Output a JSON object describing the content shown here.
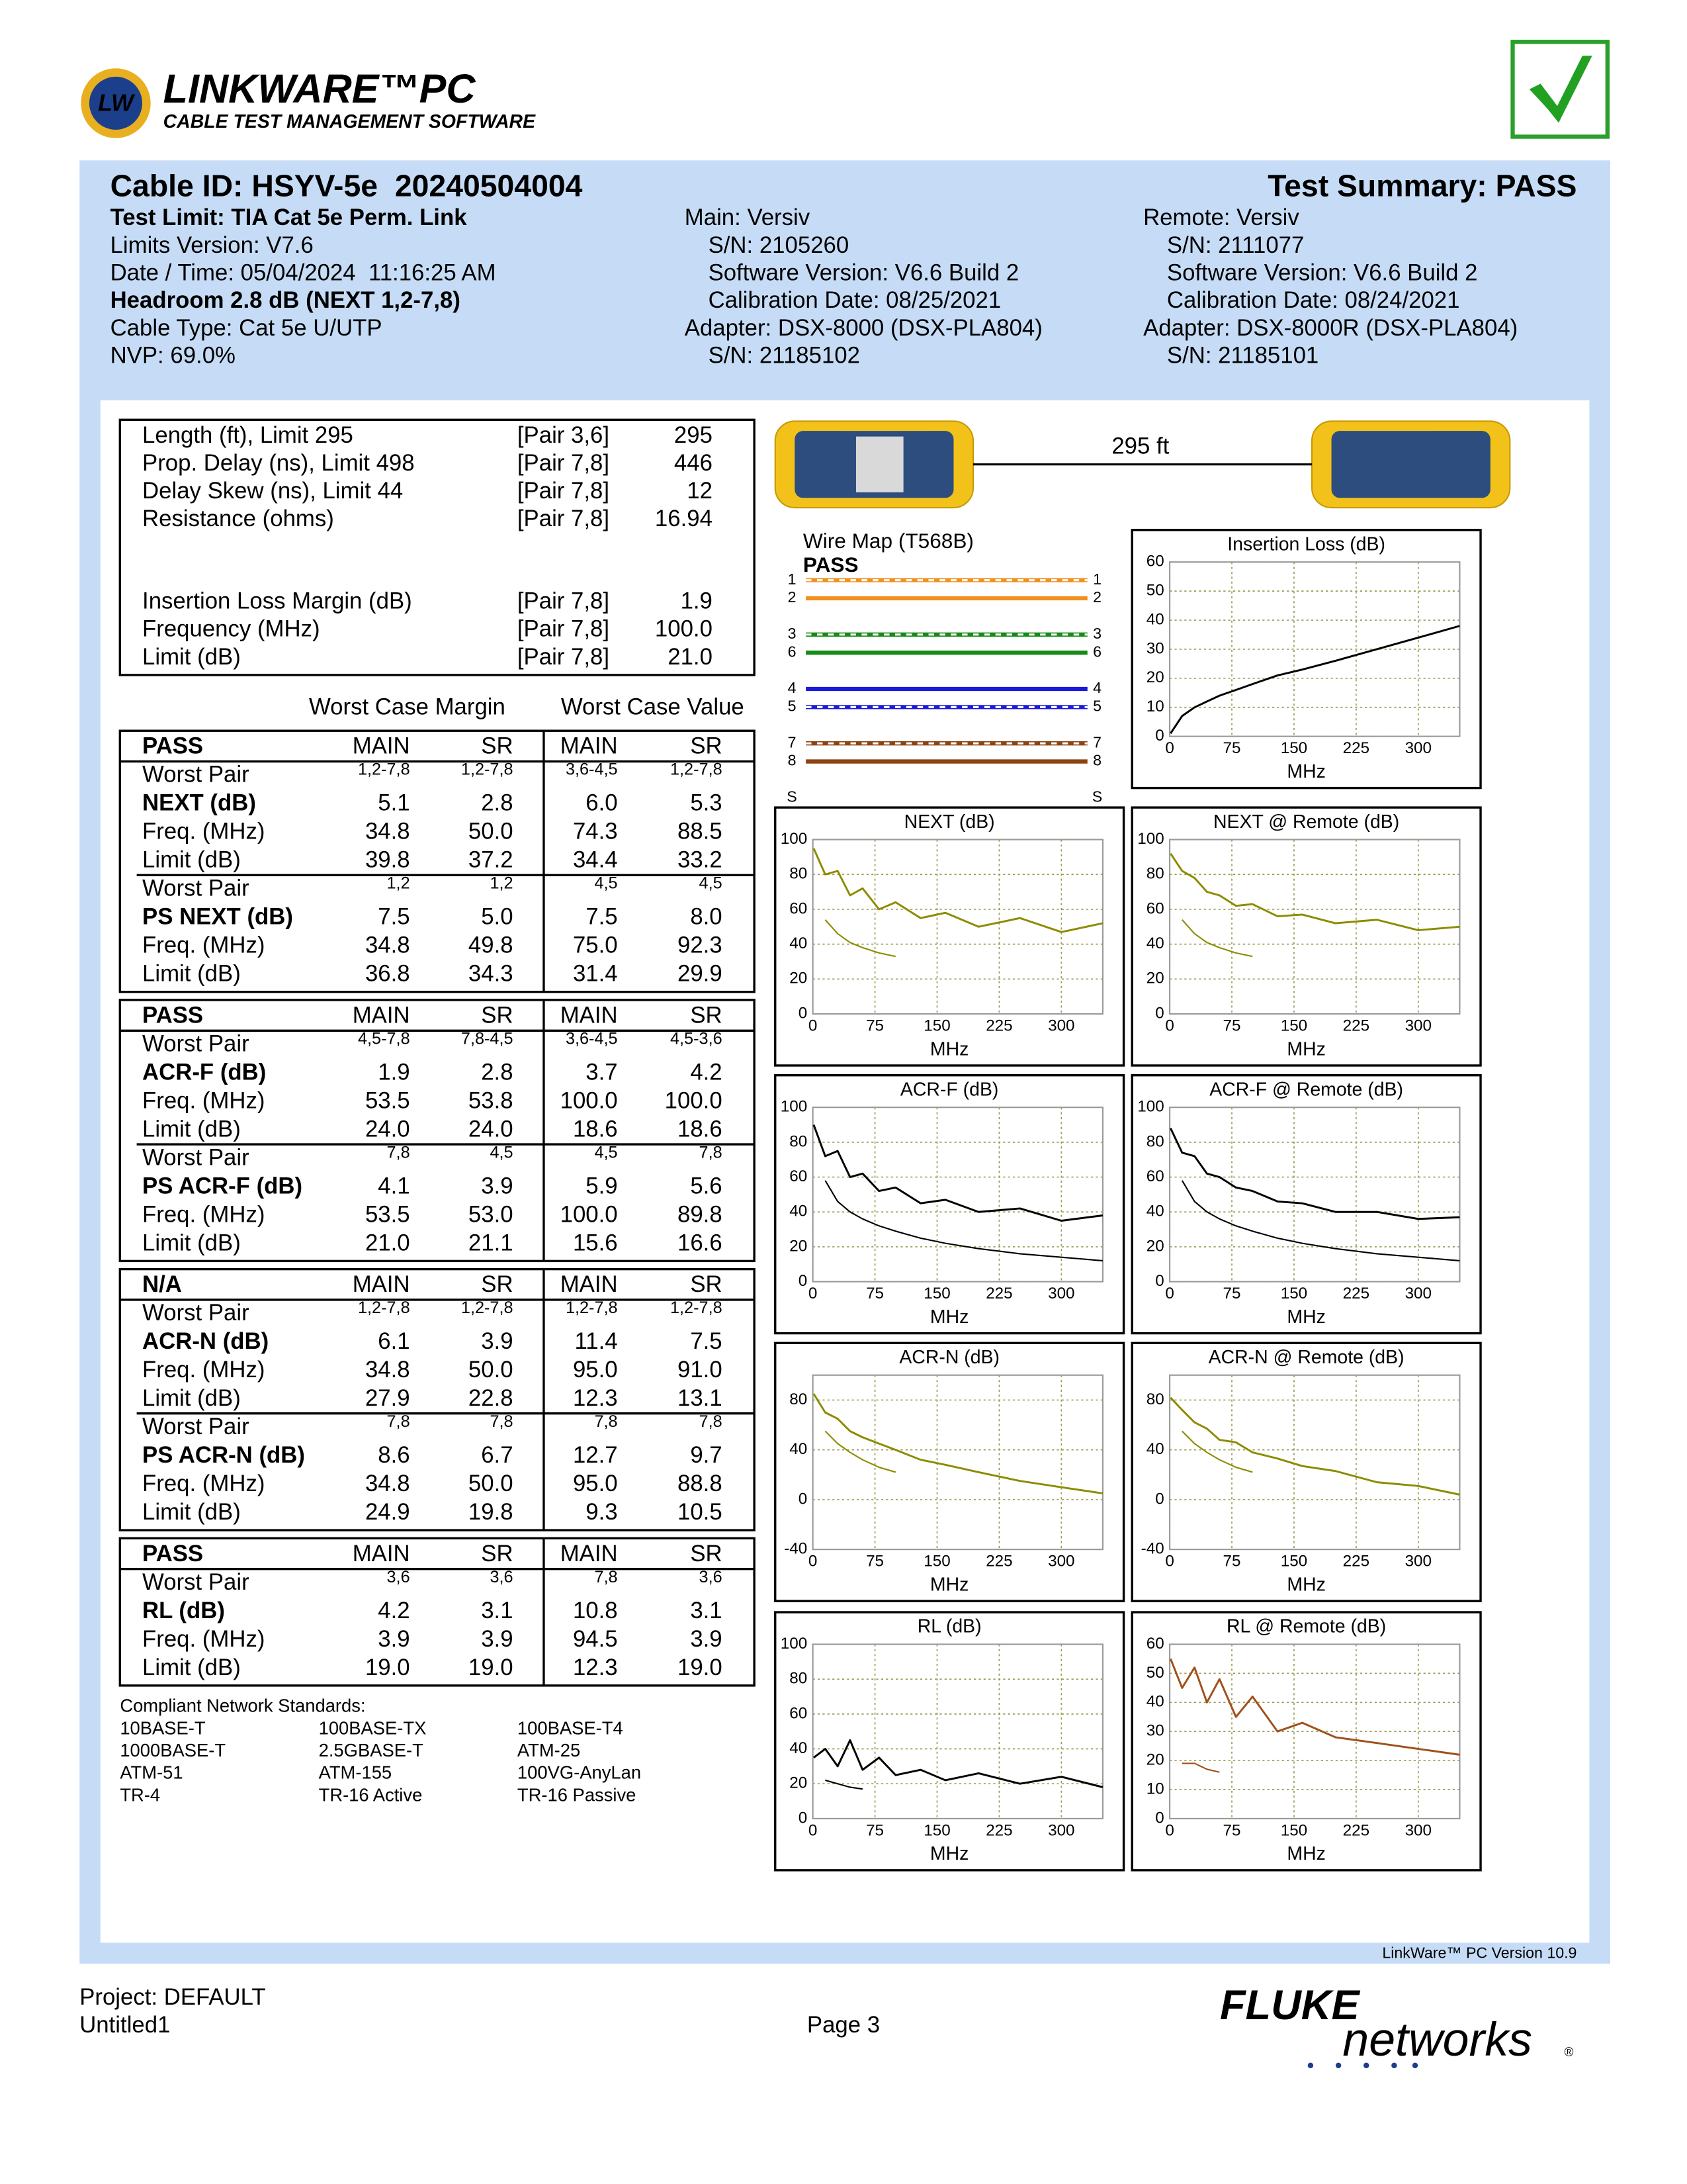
{
  "logo": {
    "badge": "LW",
    "product": "LINKWARE™PC",
    "tagline": "CABLE TEST MANAGEMENT SOFTWARE"
  },
  "header": {
    "cable_id": "Cable ID: HSYV-5e  20240504004",
    "summary": "Test Summary: PASS",
    "left": [
      "Test Limit: TIA Cat 5e Perm. Link",
      "Limits Version: V7.6",
      "Date / Time: 05/04/2024  11:16:25 AM",
      "Headroom 2.8 dB (NEXT 1,2-7,8)",
      "Cable Type: Cat 5e U/UTP",
      "NVP: 69.0%"
    ],
    "main": [
      "Main: Versiv",
      "S/N: 2105260",
      "Software Version: V6.6 Build 2",
      "Calibration Date: 08/25/2021",
      "Adapter: DSX-8000 (DSX-PLA804)",
      "S/N: 21185102"
    ],
    "remote": [
      "Remote: Versiv",
      "S/N: 2111077",
      "Software Version: V6.6 Build 2",
      "Calibration Date: 08/24/2021",
      "Adapter: DSX-8000R (DSX-PLA804)",
      "S/N: 21185101"
    ]
  },
  "summary": [
    [
      [
        "Length (ft), Limit 295",
        "[Pair 3,6]",
        "295"
      ],
      [
        "Prop. Delay (ns), Limit 498",
        "[Pair 7,8]",
        "446"
      ],
      [
        "Delay Skew (ns), Limit 44",
        "[Pair 7,8]",
        "12"
      ],
      [
        "Resistance (ohms)",
        "[Pair 7,8]",
        "16.94"
      ]
    ],
    [
      [
        "Insertion Loss Margin (dB)",
        "[Pair 7,8]",
        "1.9"
      ],
      [
        "Frequency (MHz)",
        "[Pair 7,8]",
        "100.0"
      ],
      [
        "Limit (dB)",
        "[Pair 7,8]",
        "21.0"
      ]
    ]
  ],
  "margin_heading": "Worst Case Margin",
  "value_heading": "Worst Case Value",
  "tables": [
    {
      "status": "PASS",
      "columns": [
        "MAIN",
        "SR",
        "MAIN",
        "SR"
      ],
      "groups": [
        {
          "worst_pair_label": "Worst Pair",
          "worst_pair": [
            "1,2-7,8",
            "1,2-7,8",
            "3,6-4,5",
            "1,2-7,8"
          ],
          "rows": [
            {
              "label": "NEXT (dB)",
              "values": [
                "5.1",
                "2.8",
                "6.0",
                "5.3"
              ]
            },
            {
              "label": "Freq. (MHz)",
              "values": [
                "34.8",
                "50.0",
                "74.3",
                "88.5"
              ]
            },
            {
              "label": "Limit (dB)",
              "values": [
                "39.8",
                "37.2",
                "34.4",
                "33.2"
              ]
            }
          ]
        },
        {
          "worst_pair_label": "Worst Pair",
          "worst_pair": [
            "1,2",
            "1,2",
            "4,5",
            "4,5"
          ],
          "rows": [
            {
              "label": "PS NEXT (dB)",
              "values": [
                "7.5",
                "5.0",
                "7.5",
                "8.0"
              ]
            },
            {
              "label": "Freq. (MHz)",
              "values": [
                "34.8",
                "49.8",
                "75.0",
                "92.3"
              ]
            },
            {
              "label": "Limit (dB)",
              "values": [
                "36.8",
                "34.3",
                "31.4",
                "29.9"
              ]
            }
          ]
        }
      ]
    },
    {
      "status": "PASS",
      "columns": [
        "MAIN",
        "SR",
        "MAIN",
        "SR"
      ],
      "groups": [
        {
          "worst_pair_label": "Worst Pair",
          "worst_pair": [
            "4,5-7,8",
            "7,8-4,5",
            "3,6-4,5",
            "4,5-3,6"
          ],
          "rows": [
            {
              "label": "ACR-F (dB)",
              "values": [
                "1.9",
                "2.8",
                "3.7",
                "4.2"
              ]
            },
            {
              "label": "Freq. (MHz)",
              "values": [
                "53.5",
                "53.8",
                "100.0",
                "100.0"
              ]
            },
            {
              "label": "Limit (dB)",
              "values": [
                "24.0",
                "24.0",
                "18.6",
                "18.6"
              ]
            }
          ]
        },
        {
          "worst_pair_label": "Worst Pair",
          "worst_pair": [
            "7,8",
            "4,5",
            "4,5",
            "7,8"
          ],
          "rows": [
            {
              "label": "PS ACR-F (dB)",
              "values": [
                "4.1",
                "3.9",
                "5.9",
                "5.6"
              ]
            },
            {
              "label": "Freq. (MHz)",
              "values": [
                "53.5",
                "53.0",
                "100.0",
                "89.8"
              ]
            },
            {
              "label": "Limit (dB)",
              "values": [
                "21.0",
                "21.1",
                "15.6",
                "16.6"
              ]
            }
          ]
        }
      ]
    },
    {
      "status": "N/A",
      "columns": [
        "MAIN",
        "SR",
        "MAIN",
        "SR"
      ],
      "groups": [
        {
          "worst_pair_label": "Worst Pair",
          "worst_pair": [
            "1,2-7,8",
            "1,2-7,8",
            "1,2-7,8",
            "1,2-7,8"
          ],
          "rows": [
            {
              "label": "ACR-N (dB)",
              "values": [
                "6.1",
                "3.9",
                "11.4",
                "7.5"
              ]
            },
            {
              "label": "Freq. (MHz)",
              "values": [
                "34.8",
                "50.0",
                "95.0",
                "91.0"
              ]
            },
            {
              "label": "Limit (dB)",
              "values": [
                "27.9",
                "22.8",
                "12.3",
                "13.1"
              ]
            }
          ]
        },
        {
          "worst_pair_label": "Worst Pair",
          "worst_pair": [
            "7,8",
            "7,8",
            "7,8",
            "7,8"
          ],
          "rows": [
            {
              "label": "PS ACR-N (dB)",
              "values": [
                "8.6",
                "6.7",
                "12.7",
                "9.7"
              ]
            },
            {
              "label": "Freq. (MHz)",
              "values": [
                "34.8",
                "50.0",
                "95.0",
                "88.8"
              ]
            },
            {
              "label": "Limit (dB)",
              "values": [
                "24.9",
                "19.8",
                "9.3",
                "10.5"
              ]
            }
          ]
        }
      ]
    },
    {
      "status": "PASS",
      "columns": [
        "MAIN",
        "SR",
        "MAIN",
        "SR"
      ],
      "groups": [
        {
          "worst_pair_label": "Worst Pair",
          "worst_pair": [
            "3,6",
            "3,6",
            "7,8",
            "3,6"
          ],
          "rows": [
            {
              "label": "RL (dB)",
              "values": [
                "4.2",
                "3.1",
                "10.8",
                "3.1"
              ]
            },
            {
              "label": "Freq. (MHz)",
              "values": [
                "3.9",
                "3.9",
                "94.5",
                "3.9"
              ]
            },
            {
              "label": "Limit (dB)",
              "values": [
                "19.0",
                "19.0",
                "12.3",
                "19.0"
              ]
            }
          ]
        }
      ]
    }
  ],
  "standards": {
    "title": "Compliant Network Standards:",
    "items": [
      "10BASE-T",
      "100BASE-TX",
      "100BASE-T4",
      "1000BASE-T",
      "2.5GBASE-T",
      "ATM-25",
      "ATM-51",
      "ATM-155",
      "100VG-AnyLan",
      "TR-4",
      "TR-16 Active",
      "TR-16 Passive"
    ]
  },
  "link": {
    "length": "295 ft"
  },
  "wiremap": {
    "title": "Wire Map (T568B)",
    "result": "PASS",
    "pins": [
      "1",
      "2",
      "3",
      "6",
      "4",
      "5",
      "7",
      "8"
    ],
    "pin_colors": [
      "#f0901e",
      "#f0901e",
      "#168a16",
      "#168a16",
      "#1a1adc",
      "#1a1adc",
      "#8b4513",
      "#8b4513"
    ],
    "striped": [
      true,
      false,
      true,
      false,
      false,
      true,
      true,
      false
    ],
    "shield": "S"
  },
  "graphs": [
    {
      "type": "line",
      "title": "Insertion Loss (dB)",
      "xlabel": "MHz",
      "x": [
        1,
        15,
        30,
        45,
        60,
        80,
        100,
        130,
        160,
        200,
        250,
        300,
        350
      ],
      "xlim": [
        0,
        350
      ],
      "xticks": [
        0,
        75,
        150,
        225,
        300
      ],
      "ylim": [
        0,
        60
      ],
      "yticks": [
        0,
        10,
        20,
        30,
        40,
        50,
        60
      ],
      "grid": true,
      "series": [
        {
          "color": "#000000",
          "values": [
            1,
            7,
            10,
            12,
            14,
            16,
            18,
            21,
            23,
            26,
            30,
            34,
            38
          ]
        }
      ]
    },
    {
      "type": "line",
      "title": "NEXT (dB)",
      "xlabel": "MHz",
      "x": [
        1,
        15,
        30,
        45,
        60,
        80,
        100,
        130,
        160,
        200,
        250,
        300,
        350
      ],
      "xlim": [
        0,
        350
      ],
      "xticks": [
        0,
        75,
        150,
        225,
        300
      ],
      "ylim": [
        0,
        100
      ],
      "yticks": [
        0,
        20,
        40,
        60,
        80,
        100
      ],
      "grid": true,
      "series": [
        {
          "color": "#8c8c00",
          "values": [
            95,
            80,
            82,
            68,
            72,
            60,
            64,
            55,
            58,
            50,
            55,
            47,
            52
          ]
        },
        {
          "color": "#8c8c00",
          "values": [
            null,
            54,
            46,
            41,
            38,
            35,
            33,
            null,
            null,
            null,
            null,
            null,
            null
          ]
        }
      ]
    },
    {
      "type": "line",
      "title": "NEXT @ Remote (dB)",
      "xlabel": "MHz",
      "x": [
        1,
        15,
        30,
        45,
        60,
        80,
        100,
        130,
        160,
        200,
        250,
        300,
        350
      ],
      "xlim": [
        0,
        350
      ],
      "xticks": [
        0,
        75,
        150,
        225,
        300
      ],
      "ylim": [
        0,
        100
      ],
      "yticks": [
        0,
        20,
        40,
        60,
        80,
        100
      ],
      "grid": true,
      "series": [
        {
          "color": "#8c8c00",
          "values": [
            92,
            82,
            78,
            70,
            68,
            62,
            63,
            56,
            57,
            52,
            54,
            48,
            50
          ]
        },
        {
          "color": "#8c8c00",
          "values": [
            null,
            54,
            46,
            41,
            38,
            35,
            33,
            null,
            null,
            null,
            null,
            null,
            null
          ]
        }
      ]
    },
    {
      "type": "line",
      "title": "ACR-F (dB)",
      "xlabel": "MHz",
      "x": [
        1,
        15,
        30,
        45,
        60,
        80,
        100,
        130,
        160,
        200,
        250,
        300,
        350
      ],
      "xlim": [
        0,
        350
      ],
      "xticks": [
        0,
        75,
        150,
        225,
        300
      ],
      "ylim": [
        0,
        100
      ],
      "yticks": [
        0,
        20,
        40,
        60,
        80,
        100
      ],
      "grid": true,
      "series": [
        {
          "color": "#000000",
          "values": [
            90,
            72,
            75,
            60,
            62,
            52,
            54,
            45,
            47,
            40,
            42,
            35,
            38
          ]
        },
        {
          "color": "#000000",
          "values": [
            null,
            58,
            46,
            40,
            36,
            32,
            29,
            25,
            22,
            19,
            16,
            14,
            12
          ]
        }
      ]
    },
    {
      "type": "line",
      "title": "ACR-F @ Remote (dB)",
      "xlabel": "MHz",
      "x": [
        1,
        15,
        30,
        45,
        60,
        80,
        100,
        130,
        160,
        200,
        250,
        300,
        350
      ],
      "xlim": [
        0,
        350
      ],
      "xticks": [
        0,
        75,
        150,
        225,
        300
      ],
      "ylim": [
        0,
        100
      ],
      "yticks": [
        0,
        20,
        40,
        60,
        80,
        100
      ],
      "grid": true,
      "series": [
        {
          "color": "#000000",
          "values": [
            88,
            74,
            72,
            62,
            60,
            54,
            52,
            46,
            45,
            40,
            40,
            36,
            37
          ]
        },
        {
          "color": "#000000",
          "values": [
            null,
            58,
            46,
            40,
            36,
            32,
            29,
            25,
            22,
            19,
            16,
            14,
            12
          ]
        }
      ]
    },
    {
      "type": "line",
      "title": "ACR-N (dB)",
      "xlabel": "MHz",
      "x": [
        1,
        15,
        30,
        45,
        60,
        80,
        100,
        130,
        160,
        200,
        250,
        300,
        350
      ],
      "xlim": [
        0,
        350
      ],
      "xticks": [
        0,
        75,
        150,
        225,
        300
      ],
      "ylim": [
        -40,
        100
      ],
      "yticks": [
        -40,
        0,
        40,
        80
      ],
      "grid": true,
      "series": [
        {
          "color": "#8c8c00",
          "values": [
            85,
            70,
            65,
            55,
            50,
            45,
            40,
            32,
            28,
            22,
            15,
            10,
            5
          ]
        },
        {
          "color": "#8c8c00",
          "values": [
            null,
            55,
            45,
            38,
            32,
            26,
            22,
            null,
            null,
            null,
            null,
            null,
            null
          ]
        }
      ]
    },
    {
      "type": "line",
      "title": "ACR-N @ Remote (dB)",
      "xlabel": "MHz",
      "x": [
        1,
        15,
        30,
        45,
        60,
        80,
        100,
        130,
        160,
        200,
        250,
        300,
        350
      ],
      "xlim": [
        0,
        350
      ],
      "xticks": [
        0,
        75,
        150,
        225,
        300
      ],
      "ylim": [
        -40,
        100
      ],
      "yticks": [
        -40,
        0,
        40,
        80
      ],
      "grid": true,
      "series": [
        {
          "color": "#8c8c00",
          "values": [
            82,
            72,
            62,
            57,
            48,
            46,
            38,
            33,
            27,
            23,
            14,
            11,
            4
          ]
        },
        {
          "color": "#8c8c00",
          "values": [
            null,
            55,
            45,
            38,
            32,
            26,
            22,
            null,
            null,
            null,
            null,
            null,
            null
          ]
        }
      ]
    },
    {
      "type": "line",
      "title": "RL (dB)",
      "xlabel": "MHz",
      "x": [
        1,
        15,
        30,
        45,
        60,
        80,
        100,
        130,
        160,
        200,
        250,
        300,
        350
      ],
      "xlim": [
        0,
        350
      ],
      "xticks": [
        0,
        75,
        150,
        225,
        300
      ],
      "ylim": [
        0,
        100
      ],
      "yticks": [
        0,
        20,
        40,
        60,
        80,
        100
      ],
      "grid": true,
      "series": [
        {
          "color": "#000000",
          "values": [
            35,
            40,
            30,
            45,
            28,
            35,
            25,
            28,
            22,
            26,
            20,
            24,
            18
          ]
        },
        {
          "color": "#000000",
          "values": [
            null,
            22,
            20,
            18,
            17,
            null,
            null,
            null,
            null,
            null,
            null,
            null,
            null
          ]
        }
      ]
    },
    {
      "type": "line",
      "title": "RL @ Remote (dB)",
      "xlabel": "MHz",
      "x": [
        1,
        15,
        30,
        45,
        60,
        80,
        100,
        130,
        160,
        200,
        250,
        300,
        350
      ],
      "xlim": [
        0,
        350
      ],
      "xticks": [
        0,
        75,
        150,
        225,
        300
      ],
      "ylim": [
        0,
        60
      ],
      "yticks": [
        0,
        10,
        20,
        30,
        40,
        50,
        60
      ],
      "grid": true,
      "series": [
        {
          "color": "#a0501a",
          "values": [
            55,
            45,
            52,
            40,
            48,
            35,
            42,
            30,
            33,
            28,
            26,
            24,
            22
          ]
        },
        {
          "color": "#a0501a",
          "values": [
            null,
            19,
            19,
            17,
            16,
            null,
            null,
            null,
            null,
            null,
            null,
            null,
            null
          ]
        }
      ]
    }
  ],
  "footer": {
    "version": "LinkWare™ PC Version 10.9",
    "project": "Project: DEFAULT",
    "file": "Untitled1",
    "page": "Page 3",
    "brand": "FLUKE",
    "brand_sub": "networks",
    "brand_mark": "®"
  }
}
